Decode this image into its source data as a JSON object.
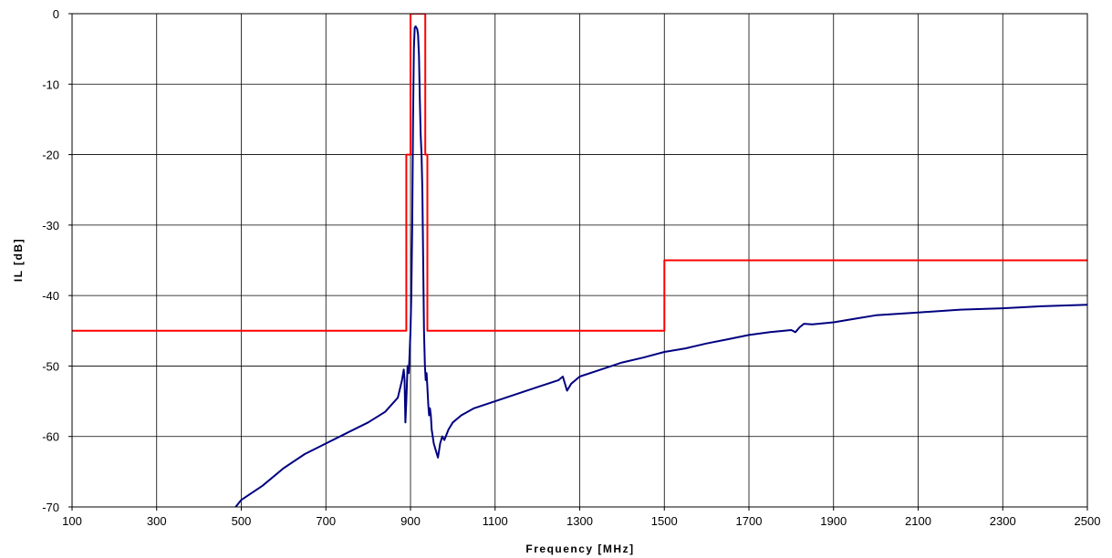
{
  "chart_data": {
    "type": "line",
    "title": "",
    "xlabel": "Frequency [MHz]",
    "ylabel": "IL [dB]",
    "xlim": [
      100,
      2500
    ],
    "ylim": [
      -70,
      0
    ],
    "x_ticks": [
      100,
      300,
      500,
      700,
      900,
      1100,
      1300,
      1500,
      1700,
      1900,
      2100,
      2300,
      2500
    ],
    "y_ticks": [
      0,
      -10,
      -20,
      -30,
      -40,
      -50,
      -60,
      -70
    ],
    "grid": true,
    "legend": "none",
    "series": [
      {
        "color": "#000080",
        "x": [
          480,
          500,
          550,
          600,
          650,
          700,
          750,
          800,
          840,
          870,
          880,
          884,
          886,
          888,
          890,
          893,
          896,
          898,
          900,
          902,
          904,
          906,
          908,
          910,
          912,
          914,
          916,
          918,
          920,
          922,
          924,
          926,
          928,
          930,
          932,
          934,
          936,
          938,
          940,
          942,
          944,
          946,
          948,
          950,
          955,
          960,
          965,
          970,
          975,
          980,
          990,
          1000,
          1020,
          1050,
          1100,
          1150,
          1200,
          1250,
          1260,
          1270,
          1280,
          1290,
          1300,
          1350,
          1400,
          1450,
          1500,
          1550,
          1600,
          1650,
          1700,
          1750,
          1800,
          1810,
          1820,
          1830,
          1850,
          1900,
          1950,
          2000,
          2100,
          2200,
          2300,
          2400,
          2500
        ],
        "y": [
          -70.5,
          -69,
          -67,
          -64.5,
          -62.5,
          -61,
          -59.5,
          -58,
          -56.5,
          -54.5,
          -52,
          -50.5,
          -52,
          -58,
          -55,
          -50,
          -51,
          -48,
          -45,
          -40,
          -30,
          -15,
          -5,
          -2,
          -1.8,
          -2,
          -2.2,
          -3,
          -6,
          -12,
          -17,
          -20,
          -25,
          -35,
          -45,
          -50,
          -52,
          -51,
          -53,
          -55.5,
          -57,
          -56,
          -57,
          -59,
          -61,
          -62,
          -63,
          -61,
          -60,
          -60.5,
          -59,
          -58,
          -57,
          -56,
          -55,
          -54,
          -53,
          -52,
          -51.5,
          -53.5,
          -52.5,
          -52,
          -51.5,
          -50.5,
          -49.5,
          -48.8,
          -48,
          -47.5,
          -46.8,
          -46.2,
          -45.6,
          -45.2,
          -44.9,
          -45.2,
          -44.5,
          -44,
          -44.1,
          -43.8,
          -43.3,
          -42.8,
          -42.4,
          -42,
          -41.8,
          -41.5,
          -41.3
        ]
      },
      {
        "color": "#ff0000",
        "x": [
          100,
          890,
          890,
          900,
          900,
          935,
          935,
          940,
          940,
          1500,
          1500,
          2500
        ],
        "y": [
          -45,
          -45,
          -20,
          -20,
          0,
          0,
          -20,
          -20,
          -45,
          -45,
          -35,
          -35
        ]
      }
    ]
  }
}
